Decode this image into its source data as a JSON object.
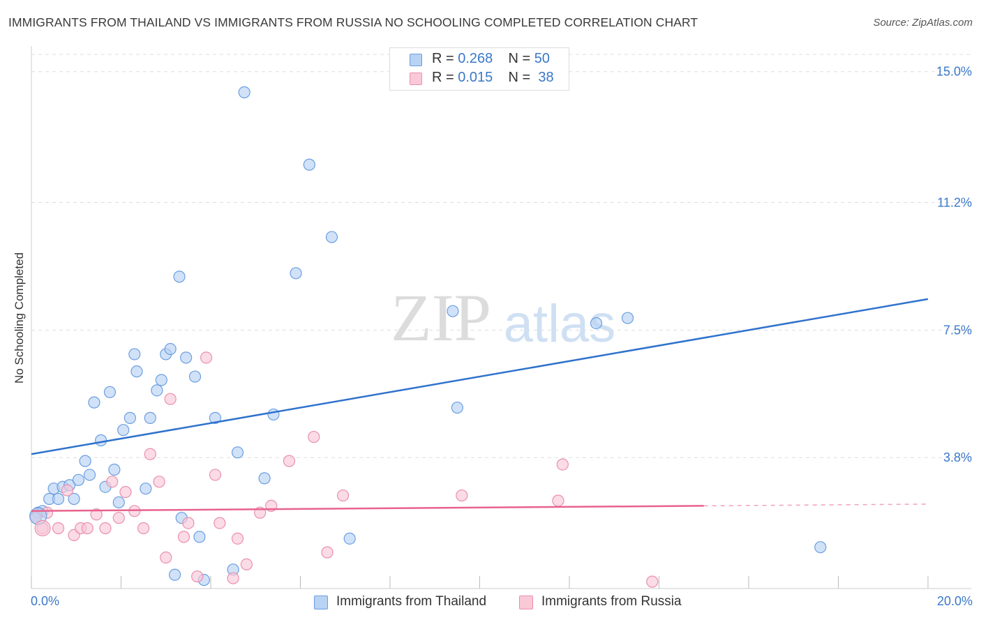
{
  "header": {
    "title": "IMMIGRANTS FROM THAILAND VS IMMIGRANTS FROM RUSSIA NO SCHOOLING COMPLETED CORRELATION CHART",
    "source": "Source: ZipAtlas.com"
  },
  "watermark": {
    "zip": "ZIP",
    "atlas": "atlas"
  },
  "legend": {
    "rows": [
      {
        "r_label": "R =",
        "r_value": "0.268",
        "n_label": "N =",
        "n_value": "50"
      },
      {
        "r_label": "R =",
        "r_value": "0.015",
        "n_label": "N =",
        "n_value": "38"
      }
    ]
  },
  "colors": {
    "thailand_fill": "#b9d3f4",
    "thailand_stroke": "#6a9ee0",
    "thailand_line": "#2f72cc",
    "russia_fill": "#f9c9d8",
    "russia_stroke": "#ea8fac",
    "russia_line": "#e8628d",
    "axis_label": "#3a78c8",
    "grid": "#dddddd"
  },
  "chart_data": {
    "type": "scatter",
    "title": "IMMIGRANTS FROM THAILAND VS IMMIGRANTS FROM RUSSIA NO SCHOOLING COMPLETED CORRELATION CHART",
    "xlabel": "",
    "ylabel": "No Schooling Completed",
    "xlim": [
      0,
      20
    ],
    "ylim": [
      0,
      15.5
    ],
    "x_tick_labels": [
      "0.0%",
      "20.0%"
    ],
    "y_ticks": [
      3.8,
      7.5,
      11.2,
      15.0
    ],
    "y_tick_labels": [
      "3.8%",
      "7.5%",
      "11.2%",
      "15.0%"
    ],
    "grid": true,
    "legend_position": "top-center",
    "series": [
      {
        "name": "Immigrants from Thailand",
        "R": 0.268,
        "N": 50,
        "trend": {
          "x": [
            0,
            20
          ],
          "y": [
            3.9,
            8.4
          ]
        },
        "points": [
          [
            0.1,
            2.1
          ],
          [
            0.15,
            2.2
          ],
          [
            0.25,
            2.25
          ],
          [
            0.4,
            2.6
          ],
          [
            0.5,
            2.9
          ],
          [
            0.6,
            2.6
          ],
          [
            0.7,
            2.95
          ],
          [
            0.85,
            3.0
          ],
          [
            0.95,
            2.6
          ],
          [
            1.05,
            3.15
          ],
          [
            1.2,
            3.7
          ],
          [
            1.3,
            3.3
          ],
          [
            1.4,
            5.4
          ],
          [
            1.55,
            4.3
          ],
          [
            1.65,
            2.95
          ],
          [
            1.75,
            5.7
          ],
          [
            1.85,
            3.45
          ],
          [
            1.95,
            2.5
          ],
          [
            2.05,
            4.6
          ],
          [
            2.2,
            4.95
          ],
          [
            2.3,
            6.8
          ],
          [
            2.35,
            6.3
          ],
          [
            2.55,
            2.9
          ],
          [
            2.65,
            4.95
          ],
          [
            2.8,
            5.75
          ],
          [
            2.9,
            6.05
          ],
          [
            3.0,
            6.8
          ],
          [
            3.1,
            6.95
          ],
          [
            3.2,
            0.4
          ],
          [
            3.3,
            9.05
          ],
          [
            3.35,
            2.05
          ],
          [
            3.45,
            6.7
          ],
          [
            3.65,
            6.15
          ],
          [
            3.75,
            1.5
          ],
          [
            3.85,
            0.25
          ],
          [
            4.1,
            4.95
          ],
          [
            4.5,
            0.55
          ],
          [
            4.6,
            3.95
          ],
          [
            4.75,
            14.4
          ],
          [
            5.2,
            3.2
          ],
          [
            5.4,
            5.05
          ],
          [
            5.9,
            9.15
          ],
          [
            6.2,
            12.3
          ],
          [
            6.7,
            10.2
          ],
          [
            7.1,
            1.45
          ],
          [
            9.4,
            8.05
          ],
          [
            9.5,
            5.25
          ],
          [
            12.6,
            7.7
          ],
          [
            13.3,
            7.85
          ],
          [
            17.6,
            1.2
          ]
        ]
      },
      {
        "name": "Immigrants from Russia",
        "R": 0.015,
        "N": 38,
        "trend": {
          "x": [
            0,
            15
          ],
          "y": [
            2.25,
            2.4
          ]
        },
        "trend_extension": {
          "x": [
            15,
            20
          ],
          "y": [
            2.4,
            2.45
          ]
        },
        "points": [
          [
            0.1,
            2.05
          ],
          [
            0.25,
            1.75
          ],
          [
            0.35,
            2.2
          ],
          [
            0.6,
            1.75
          ],
          [
            0.8,
            2.85
          ],
          [
            0.95,
            1.55
          ],
          [
            1.1,
            1.75
          ],
          [
            1.25,
            1.75
          ],
          [
            1.45,
            2.15
          ],
          [
            1.65,
            1.75
          ],
          [
            1.8,
            3.1
          ],
          [
            1.95,
            2.05
          ],
          [
            2.1,
            2.8
          ],
          [
            2.3,
            2.25
          ],
          [
            2.5,
            1.75
          ],
          [
            2.65,
            3.9
          ],
          [
            2.85,
            3.1
          ],
          [
            3.0,
            0.9
          ],
          [
            3.1,
            5.5
          ],
          [
            3.4,
            1.5
          ],
          [
            3.5,
            1.9
          ],
          [
            3.7,
            0.35
          ],
          [
            3.9,
            6.7
          ],
          [
            4.1,
            3.3
          ],
          [
            4.2,
            1.9
          ],
          [
            4.5,
            0.3
          ],
          [
            4.6,
            1.45
          ],
          [
            4.8,
            0.7
          ],
          [
            5.1,
            2.2
          ],
          [
            5.35,
            2.4
          ],
          [
            5.75,
            3.7
          ],
          [
            6.3,
            4.4
          ],
          [
            6.6,
            1.05
          ],
          [
            6.95,
            2.7
          ],
          [
            9.6,
            2.7
          ],
          [
            11.75,
            2.55
          ],
          [
            11.85,
            3.6
          ],
          [
            13.85,
            0.2
          ]
        ]
      }
    ]
  }
}
